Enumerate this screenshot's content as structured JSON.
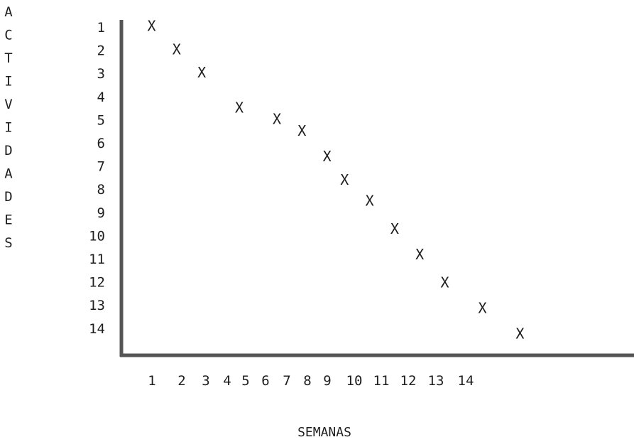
{
  "chart_data": {
    "type": "scatter",
    "ylabel_letters": [
      "A",
      "C",
      "T",
      "I",
      "V",
      "I",
      "D",
      "A",
      "D",
      "E",
      "S"
    ],
    "xlabel": "SEMANAS",
    "x_ticks": [
      "1",
      "2",
      "3",
      "4",
      "5",
      "6",
      "7",
      "8",
      "9",
      "10",
      "11",
      "12",
      "13",
      "14"
    ],
    "y_ticks": [
      "1",
      "2",
      "3",
      "4",
      "5",
      "6",
      "7",
      "8",
      "9",
      "10",
      "11",
      "12",
      "13",
      "14"
    ],
    "marker": "X",
    "points": [
      {
        "x": 1,
        "y": 1
      },
      {
        "x": 2,
        "y": 2
      },
      {
        "x": 3,
        "y": 3
      },
      {
        "x": 4.5,
        "y": 4.5
      },
      {
        "x": 6,
        "y": 5
      },
      {
        "x": 7,
        "y": 5.5
      },
      {
        "x": 8,
        "y": 6.6
      },
      {
        "x": 8.7,
        "y": 7.6
      },
      {
        "x": 9.7,
        "y": 8.5
      },
      {
        "x": 10.7,
        "y": 9.7
      },
      {
        "x": 11.7,
        "y": 10.8
      },
      {
        "x": 12.7,
        "y": 12
      },
      {
        "x": 14.2,
        "y": 13.1
      },
      {
        "x": 15.7,
        "y": 14.2
      }
    ],
    "grid": false,
    "legend": "none"
  }
}
